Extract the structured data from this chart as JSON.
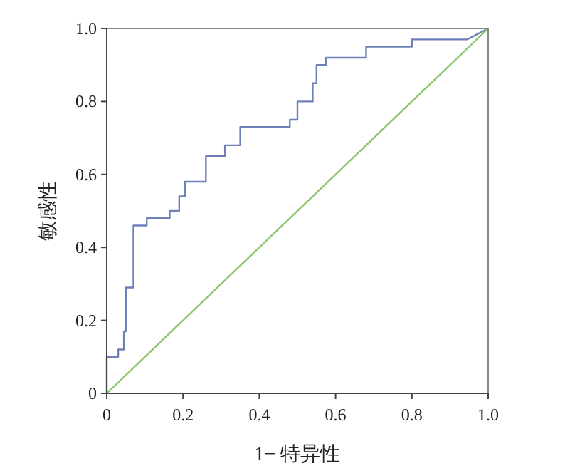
{
  "chart_data": {
    "type": "line",
    "xlabel": "1− 特异性",
    "ylabel": "敏感性",
    "xlim": [
      0,
      1
    ],
    "ylim": [
      0,
      1
    ],
    "xticks": [
      0,
      0.2,
      0.4,
      0.6,
      0.8,
      {
        "value": 1,
        "label": "1.0"
      }
    ],
    "yticks": [
      0,
      0.2,
      0.4,
      0.6,
      0.8,
      {
        "value": 1,
        "label": "1.0"
      }
    ],
    "grid": false,
    "marker": "none",
    "line_style": "solid",
    "series": [
      {
        "color": "#6d80b8",
        "x": [
          0,
          0,
          0.03,
          0.03,
          0.045,
          0.045,
          0.05,
          0.05,
          0.07,
          0.07,
          0.105,
          0.105,
          0.165,
          0.165,
          0.19,
          0.19,
          0.205,
          0.205,
          0.26,
          0.26,
          0.31,
          0.31,
          0.35,
          0.35,
          0.48,
          0.48,
          0.5,
          0.5,
          0.54,
          0.54,
          0.55,
          0.55,
          0.575,
          0.575,
          0.68,
          0.68,
          0.8,
          0.8,
          0.945,
          1
        ],
        "values": [
          0,
          0.1,
          0.1,
          0.12,
          0.12,
          0.17,
          0.17,
          0.29,
          0.29,
          0.46,
          0.46,
          0.48,
          0.48,
          0.5,
          0.5,
          0.54,
          0.54,
          0.58,
          0.58,
          0.65,
          0.65,
          0.68,
          0.68,
          0.73,
          0.73,
          0.75,
          0.75,
          0.8,
          0.8,
          0.85,
          0.85,
          0.9,
          0.9,
          0.92,
          0.92,
          0.95,
          0.95,
          0.97,
          0.97,
          1
        ]
      },
      {
        "color": "#8cc66a",
        "x": [
          0,
          1
        ],
        "values": [
          0,
          1
        ]
      }
    ]
  }
}
